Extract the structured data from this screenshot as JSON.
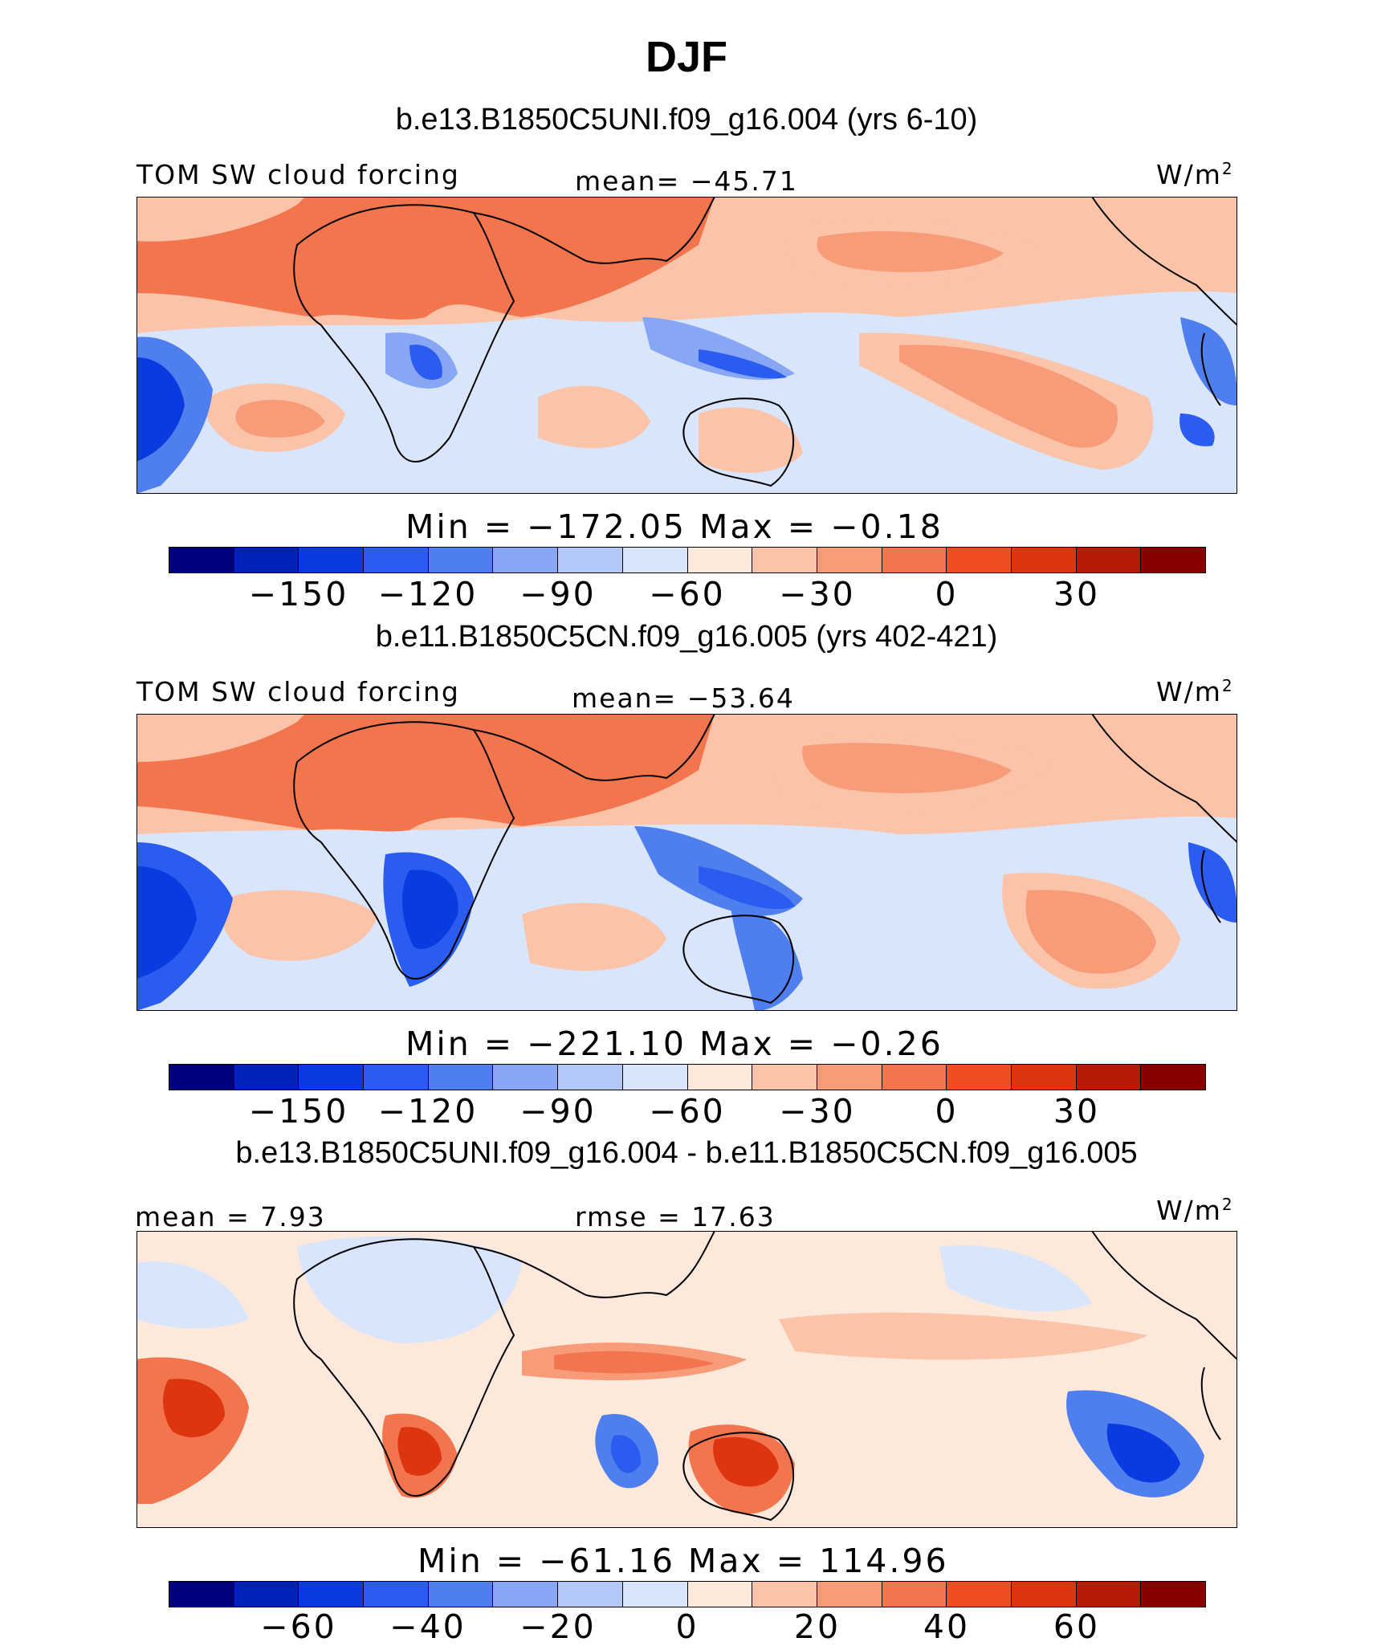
{
  "page_title": "DJF",
  "panels": [
    {
      "case_title": "b.e13.B1850C5UNI.f09_g16.004 (yrs 6-10)",
      "left_label": "TOM  SW  cloud  forcing",
      "center_label": "mean=  −45.71",
      "units": "W/m",
      "units_sup": "2",
      "stats": "Min  =  −172.05  Max  =    −0.18",
      "tick_labels": [
        "−150",
        "−120",
        "−90",
        "−60",
        "−30",
        "0",
        "30"
      ]
    },
    {
      "case_title": "b.e11.B1850C5CN.f09_g16.005 (yrs 402-421)",
      "left_label": "TOM  SW  cloud  forcing",
      "center_label": "mean=  −53.64",
      "units": "W/m",
      "units_sup": "2",
      "stats": "Min  =  −221.10  Max  =    −0.26",
      "tick_labels": [
        "−150",
        "−120",
        "−90",
        "−60",
        "−30",
        "0",
        "30"
      ]
    },
    {
      "case_title": "b.e13.B1850C5UNI.f09_g16.004 - b.e11.B1850C5CN.f09_g16.005",
      "left_label": "mean  =    7.93",
      "center_label": "rmse  =    17.63",
      "units": "W/m",
      "units_sup": "2",
      "stats": "Min  =  −61.16  Max  =  114.96",
      "tick_labels": [
        "−60",
        "−40",
        "−20",
        "0",
        "20",
        "40",
        "60"
      ]
    }
  ],
  "colors": {
    "palette": [
      "#00007f",
      "#0022b8",
      "#0a3be0",
      "#2a5cf0",
      "#4f7fef",
      "#87a6f3",
      "#b3c8f7",
      "#d9e5fb",
      "#fde9dc",
      "#fbc3a8",
      "#f79b78",
      "#f3754d",
      "#ef4d23",
      "#dc3510",
      "#b51c08",
      "#860000"
    ]
  }
}
